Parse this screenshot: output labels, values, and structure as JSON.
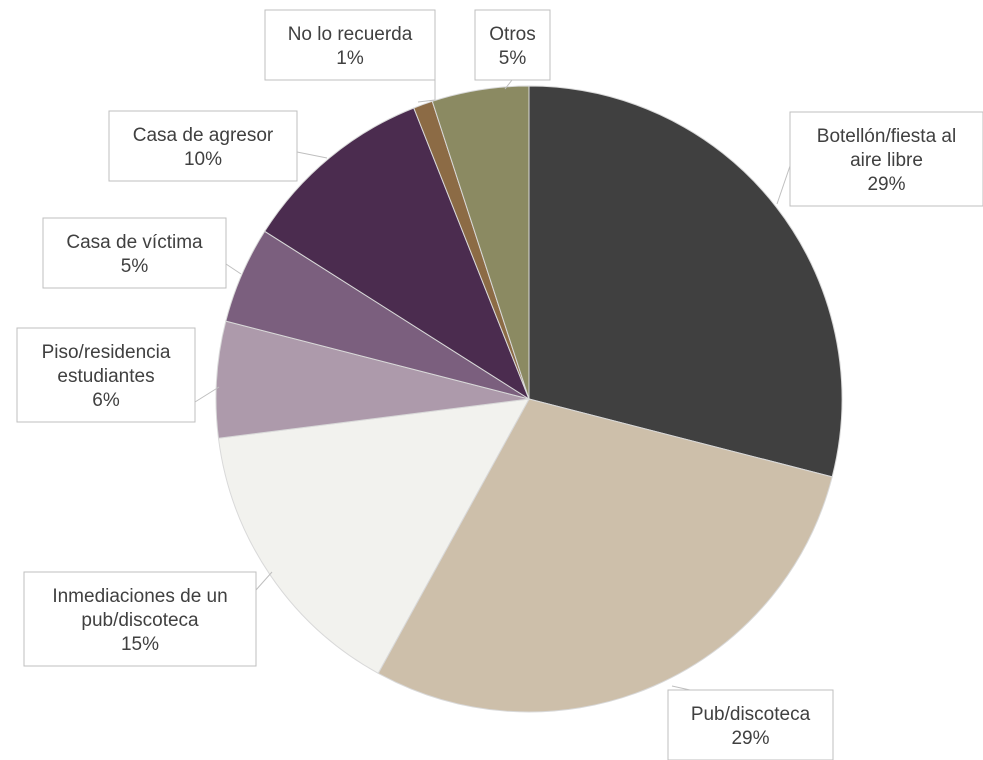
{
  "chart_data": {
    "type": "pie",
    "title": "",
    "slices": [
      {
        "label": "Botellón/fiesta al aire libre",
        "lines": [
          "Botellón/fiesta al",
          "aire libre"
        ],
        "value": 29,
        "value_label": "29%",
        "color": "#404040"
      },
      {
        "label": "Pub/discoteca",
        "lines": [
          "Pub/discoteca"
        ],
        "value": 29,
        "value_label": "29%",
        "color": "#cdbfaa"
      },
      {
        "label": "Inmediaciones de un pub/discoteca",
        "lines": [
          "Inmediaciones de un",
          "pub/discoteca"
        ],
        "value": 15,
        "value_label": "15%",
        "color": "#f2f2ee"
      },
      {
        "label": "Piso/residencia estudiantes",
        "lines": [
          "Piso/residencia",
          "estudiantes"
        ],
        "value": 6,
        "value_label": "6%",
        "color": "#ad9aab"
      },
      {
        "label": "Casa de víctima",
        "lines": [
          "Casa de víctima"
        ],
        "value": 5,
        "value_label": "5%",
        "color": "#7b5f7e"
      },
      {
        "label": "Casa de agresor",
        "lines": [
          "Casa de agresor"
        ],
        "value": 10,
        "value_label": "10%",
        "color": "#4b2c4f"
      },
      {
        "label": "No lo recuerda",
        "lines": [
          "No lo recuerda"
        ],
        "value": 1,
        "value_label": "1%",
        "color": "#8c6b45"
      },
      {
        "label": "Otros",
        "lines": [
          "Otros"
        ],
        "value": 5,
        "value_label": "5%",
        "color": "#8b8a62"
      }
    ],
    "start_angle_deg": 0,
    "direction": "clockwise",
    "legend": "none",
    "data_labels": "callouts with category name and percentage"
  }
}
